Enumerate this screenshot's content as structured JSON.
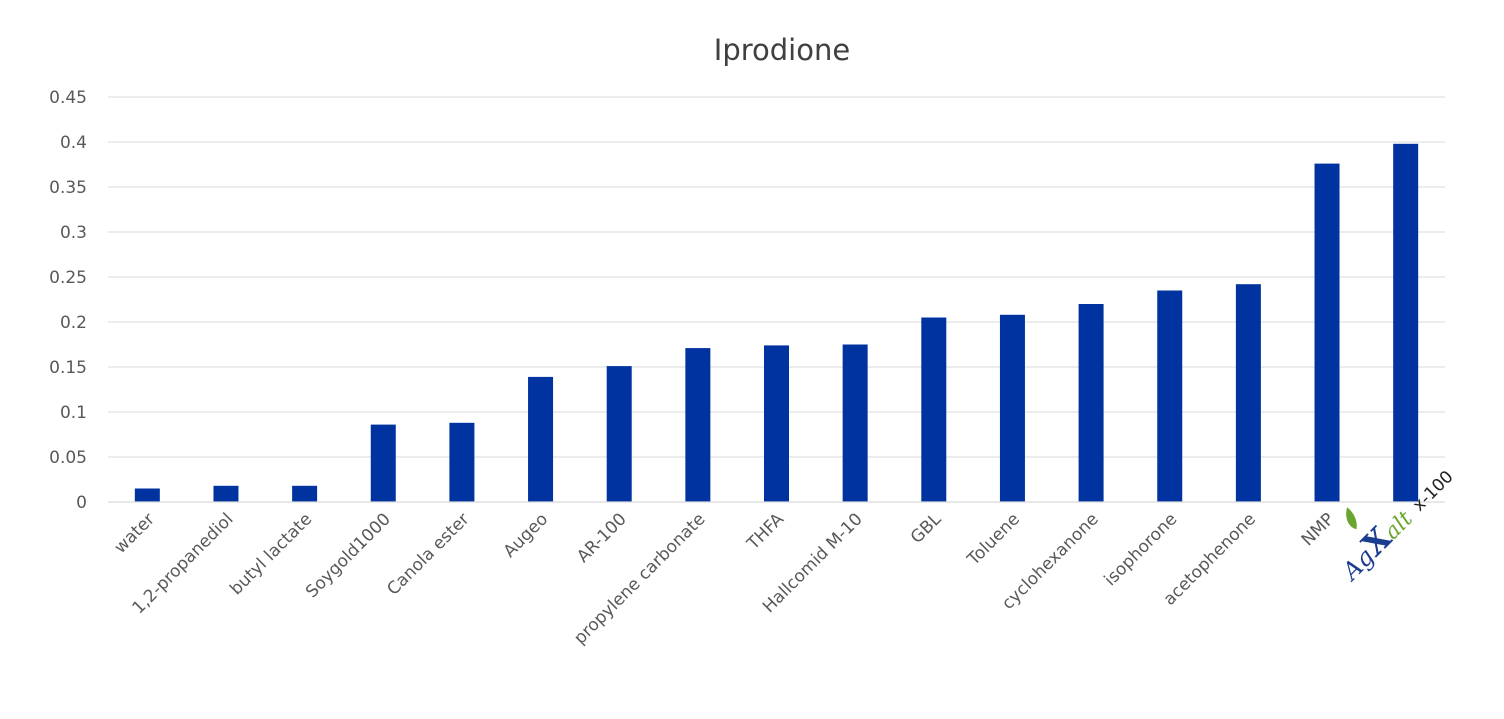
{
  "chart_data": {
    "type": "bar",
    "title": "Iprodione",
    "xlabel": "",
    "ylabel": "",
    "ylim": [
      0,
      0.45
    ],
    "yticks": [
      "0",
      "0.05",
      "0.1",
      "0.15",
      "0.2",
      "0.25",
      "0.3",
      "0.35",
      "0.4",
      "0.45"
    ],
    "grid": true,
    "bar_color": "#0033a0",
    "categories": [
      "water",
      "1,2-propanediol",
      "butyl lactate",
      "Soygold1000",
      "Canola ester",
      "Augeo",
      "AR-100",
      "propylene carbonate",
      "THFA",
      "Hallcomid M-10",
      "GBL",
      "Toluene",
      "cyclohexanone",
      "isophorone",
      "acetophenone",
      "NMP",
      "AgXalt x-100"
    ],
    "values": [
      0.015,
      0.018,
      0.018,
      0.086,
      0.088,
      0.139,
      0.151,
      0.171,
      0.174,
      0.175,
      0.205,
      0.208,
      0.22,
      0.235,
      0.242,
      0.376,
      0.398
    ]
  },
  "logo": {
    "part_ag": "Ag",
    "part_x": "X",
    "part_alt": "alt",
    "suffix": "x-100",
    "colors": {
      "ag": "#1a3d8f",
      "x": "#1a3d8f",
      "alt": "#6aa62e",
      "leaf": "#6aa62e"
    }
  }
}
